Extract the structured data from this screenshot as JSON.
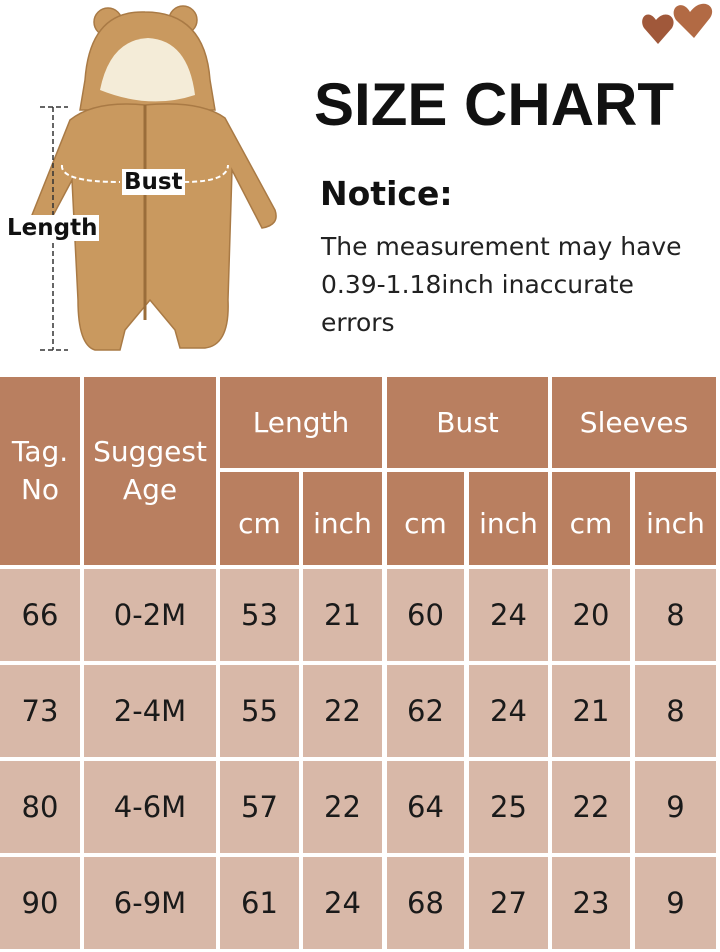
{
  "title": "SIZE CHART",
  "notice": {
    "heading": "Notice:",
    "text": "The measurement may have 0.39-1.18inch inaccurate errors"
  },
  "figure": {
    "bust_label": "Bust",
    "length_label": "Length",
    "garment_color": "#c9995f"
  },
  "colors": {
    "header": "#b97f60",
    "body": "#d8b8a8",
    "heart": "#a0583a"
  },
  "table": {
    "headers": {
      "tag": "Tag. No",
      "age": "Suggest Age",
      "length": "Length",
      "bust": "Bust",
      "sleeves": "Sleeves",
      "cm": "cm",
      "inch": "inch"
    },
    "rows": [
      [
        "66",
        "0-2M",
        "53",
        "21",
        "60",
        "24",
        "20",
        "8"
      ],
      [
        "73",
        "2-4M",
        "55",
        "22",
        "62",
        "24",
        "21",
        "8"
      ],
      [
        "80",
        "4-6M",
        "57",
        "22",
        "64",
        "25",
        "22",
        "9"
      ],
      [
        "90",
        "6-9M",
        "61",
        "24",
        "68",
        "27",
        "23",
        "9"
      ]
    ]
  }
}
